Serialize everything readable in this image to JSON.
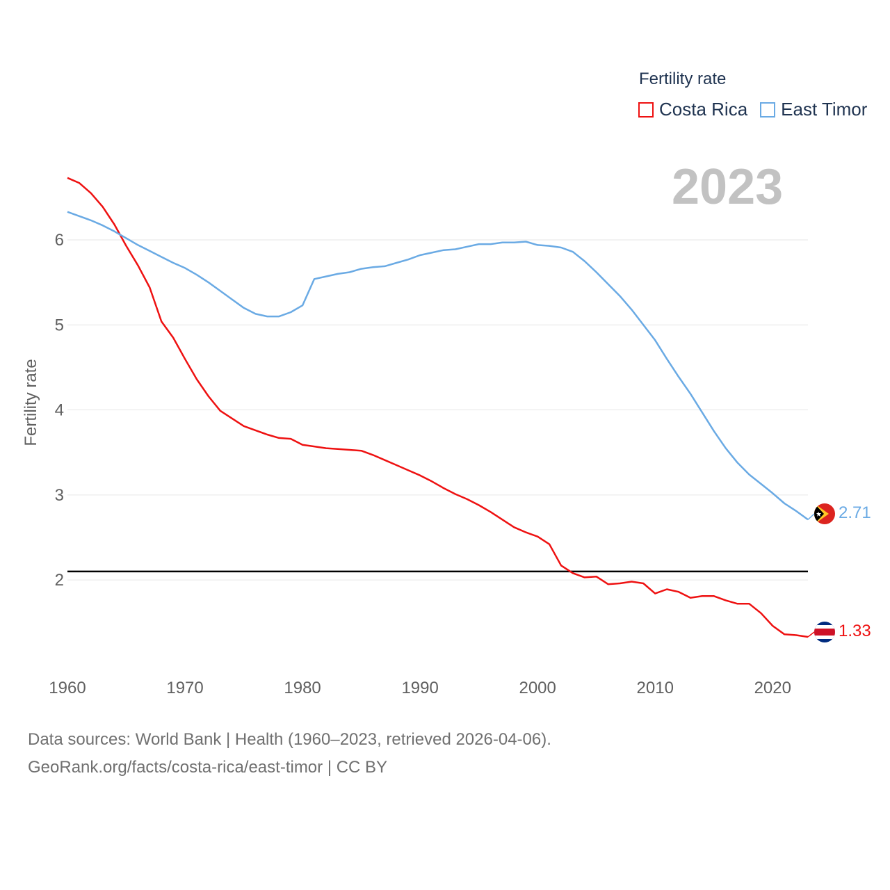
{
  "legend": {
    "title": "Fertility rate",
    "items": [
      {
        "label": "Costa Rica",
        "color": "#ee1111"
      },
      {
        "label": "East Timor",
        "color": "#6aaae4"
      }
    ]
  },
  "current_year": "2023",
  "end_labels": {
    "costa_rica": "1.33",
    "east_timor": "2.71"
  },
  "footer": {
    "line1": "Data sources: World Bank | Health (1960–2023, retrieved 2026-04-06).",
    "line2": "GeoRank.org/facts/costa-rica/east-timor | CC BY"
  },
  "chart_data": {
    "type": "line",
    "title": "Fertility rate",
    "xlabel": "",
    "ylabel": "Fertility rate",
    "xlim": [
      1960,
      2023
    ],
    "ylim": [
      0.97,
      6.9
    ],
    "x_ticks": [
      1960,
      1970,
      1980,
      1990,
      2000,
      2010,
      2020
    ],
    "y_ticks": [
      2,
      3,
      4,
      5,
      6
    ],
    "reference_line": {
      "y": 2.1,
      "color": "#000000"
    },
    "x": [
      1960,
      1961,
      1962,
      1963,
      1964,
      1965,
      1966,
      1967,
      1968,
      1969,
      1970,
      1971,
      1972,
      1973,
      1974,
      1975,
      1976,
      1977,
      1978,
      1979,
      1980,
      1981,
      1982,
      1983,
      1984,
      1985,
      1986,
      1987,
      1988,
      1989,
      1990,
      1991,
      1992,
      1993,
      1994,
      1995,
      1996,
      1997,
      1998,
      1999,
      2000,
      2001,
      2002,
      2003,
      2004,
      2005,
      2006,
      2007,
      2008,
      2009,
      2010,
      2011,
      2012,
      2013,
      2014,
      2015,
      2016,
      2017,
      2018,
      2019,
      2020,
      2021,
      2022,
      2023
    ],
    "series": [
      {
        "name": "Costa Rica",
        "color": "#ee1111",
        "values": [
          6.73,
          6.67,
          6.55,
          6.39,
          6.18,
          5.93,
          5.7,
          5.44,
          5.04,
          4.85,
          4.6,
          4.36,
          4.16,
          3.99,
          3.9,
          3.81,
          3.76,
          3.71,
          3.67,
          3.66,
          3.59,
          3.57,
          3.55,
          3.54,
          3.53,
          3.52,
          3.47,
          3.41,
          3.35,
          3.29,
          3.23,
          3.16,
          3.08,
          3.01,
          2.95,
          2.88,
          2.8,
          2.71,
          2.62,
          2.56,
          2.51,
          2.42,
          2.17,
          2.08,
          2.03,
          2.04,
          1.95,
          1.96,
          1.98,
          1.96,
          1.84,
          1.89,
          1.86,
          1.79,
          1.81,
          1.81,
          1.76,
          1.72,
          1.72,
          1.61,
          1.46,
          1.36,
          1.35,
          1.33
        ]
      },
      {
        "name": "East Timor",
        "color": "#6aaae4",
        "values": [
          6.33,
          6.28,
          6.23,
          6.17,
          6.1,
          6.02,
          5.94,
          5.87,
          5.8,
          5.73,
          5.67,
          5.59,
          5.5,
          5.4,
          5.3,
          5.2,
          5.13,
          5.1,
          5.1,
          5.15,
          5.23,
          5.54,
          5.57,
          5.6,
          5.62,
          5.66,
          5.68,
          5.69,
          5.73,
          5.77,
          5.82,
          5.85,
          5.88,
          5.89,
          5.92,
          5.95,
          5.95,
          5.97,
          5.97,
          5.98,
          5.94,
          5.93,
          5.91,
          5.86,
          5.75,
          5.62,
          5.48,
          5.34,
          5.18,
          5.0,
          4.82,
          4.6,
          4.39,
          4.19,
          3.97,
          3.75,
          3.55,
          3.38,
          3.24,
          3.13,
          3.02,
          2.9,
          2.81,
          2.71
        ]
      }
    ]
  }
}
